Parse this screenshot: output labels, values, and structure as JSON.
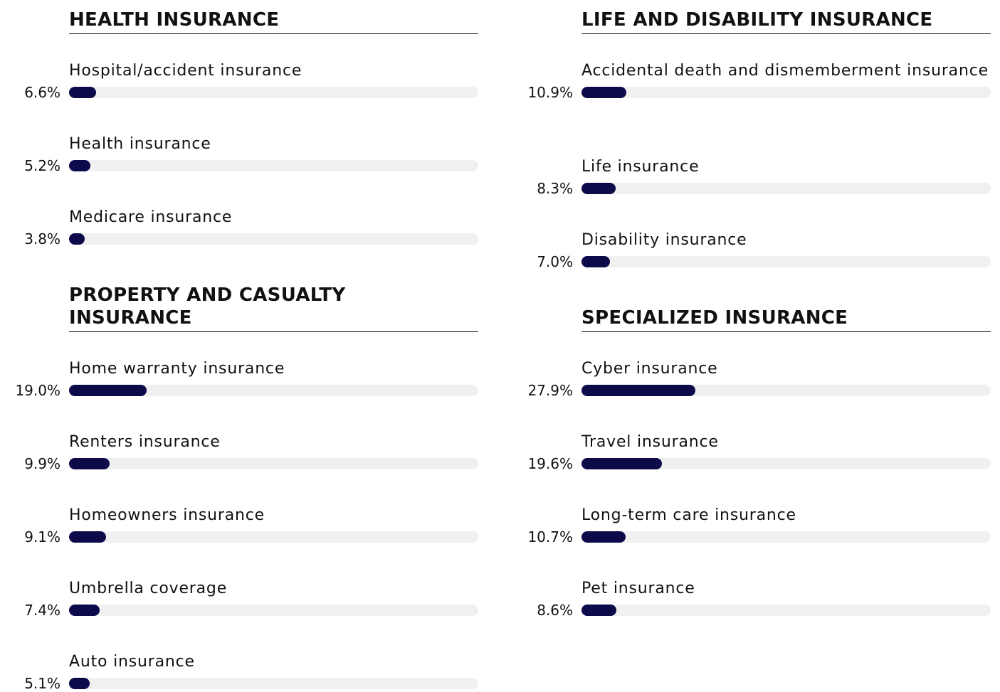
{
  "chart_data": [
    {
      "type": "bar",
      "title": "HEALTH INSURANCE",
      "categories": [
        "Hospital/accident insurance",
        "Health insurance",
        "Medicare insurance"
      ],
      "values": [
        6.6,
        5.2,
        3.8
      ],
      "value_labels": [
        "6.6%",
        "5.2%",
        "3.8%"
      ],
      "color": "#0d0a4a",
      "xlim": [
        0,
        100
      ]
    },
    {
      "type": "bar",
      "title": "PROPERTY AND CASUALTY INSURANCE",
      "categories": [
        "Home warranty insurance",
        "Renters insurance",
        "Homeowners insurance",
        "Umbrella coverage",
        "Auto insurance"
      ],
      "values": [
        19.0,
        9.9,
        9.1,
        7.4,
        5.1
      ],
      "value_labels": [
        "19.0%",
        "9.9%",
        "9.1%",
        "7.4%",
        "5.1%"
      ],
      "color": "#0d0a4a",
      "xlim": [
        0,
        100
      ]
    },
    {
      "type": "bar",
      "title": "LIFE AND DISABILITY INSURANCE",
      "categories": [
        "Accidental death and dismemberment insurance",
        "Life insurance",
        "Disability insurance"
      ],
      "values": [
        10.9,
        8.3,
        7.0
      ],
      "value_labels": [
        "10.9%",
        "8.3%",
        "7.0%"
      ],
      "color": "#0d0a4a",
      "xlim": [
        0,
        100
      ]
    },
    {
      "type": "bar",
      "title": "SPECIALIZED INSURANCE",
      "categories": [
        "Cyber insurance",
        "Travel insurance",
        "Long-term care insurance",
        "Pet insurance"
      ],
      "values": [
        27.9,
        19.6,
        10.7,
        8.6
      ],
      "value_labels": [
        "27.9%",
        "19.6%",
        "10.7%",
        "8.6%"
      ],
      "color": "#0d0a4a",
      "xlim": [
        0,
        100
      ]
    }
  ]
}
